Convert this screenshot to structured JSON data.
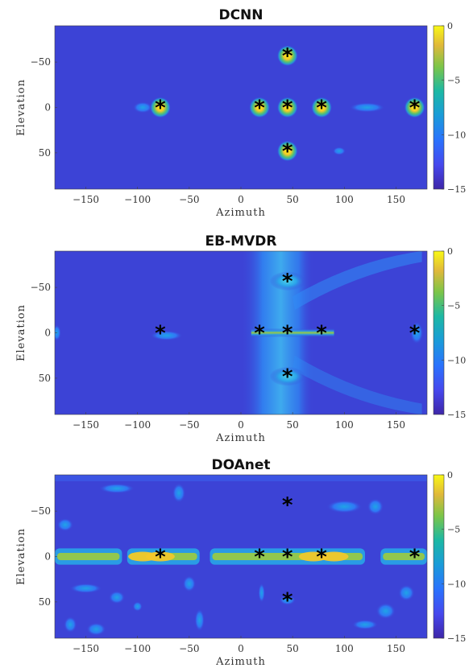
{
  "chart_data": [
    {
      "type": "heatmap",
      "title": "DCNN",
      "xlabel": "Azimuth",
      "ylabel": "Elevation",
      "xlim": [
        -180,
        180
      ],
      "ylim": [
        -90,
        90
      ],
      "y_reversed": true,
      "xticks": [
        -150,
        -100,
        -50,
        0,
        50,
        100,
        150
      ],
      "yticks": [
        -50,
        0,
        50
      ],
      "colorbar": {
        "range": [
          -15,
          0
        ],
        "ticks": [
          0,
          -5,
          -10,
          -15
        ],
        "colormap": "parula"
      },
      "sources": [
        {
          "azimuth": -78,
          "elevation": 0
        },
        {
          "azimuth": 18,
          "elevation": 0
        },
        {
          "azimuth": 45,
          "elevation": 0
        },
        {
          "azimuth": 78,
          "elevation": 0
        },
        {
          "azimuth": 168,
          "elevation": 0
        },
        {
          "azimuth": 45,
          "elevation": -57
        },
        {
          "azimuth": 45,
          "elevation": 48
        }
      ],
      "star_color": "#000000"
    },
    {
      "type": "heatmap",
      "title": "EB-MVDR",
      "xlabel": "Azimuth",
      "ylabel": "Elevation",
      "xlim": [
        -180,
        180
      ],
      "ylim": [
        -90,
        90
      ],
      "y_reversed": true,
      "xticks": [
        -150,
        -100,
        -50,
        0,
        50,
        100,
        150
      ],
      "yticks": [
        -50,
        0,
        50
      ],
      "colorbar": {
        "range": [
          -15,
          0
        ],
        "ticks": [
          0,
          -5,
          -10,
          -15
        ],
        "colormap": "parula"
      },
      "sources": [
        {
          "azimuth": -78,
          "elevation": 0
        },
        {
          "azimuth": 18,
          "elevation": 0
        },
        {
          "azimuth": 45,
          "elevation": 0
        },
        {
          "azimuth": 78,
          "elevation": 0
        },
        {
          "azimuth": 168,
          "elevation": 0
        },
        {
          "azimuth": 45,
          "elevation": -57
        },
        {
          "azimuth": 45,
          "elevation": 48
        }
      ],
      "star_color": "#000000"
    },
    {
      "type": "heatmap",
      "title": "DOAnet",
      "xlabel": "Azimuth",
      "ylabel": "Elevation",
      "xlim": [
        -180,
        180
      ],
      "ylim": [
        -90,
        90
      ],
      "y_reversed": true,
      "xticks": [
        -150,
        -100,
        -50,
        0,
        50,
        100,
        150
      ],
      "yticks": [
        -50,
        0,
        50
      ],
      "colorbar": {
        "range": [
          -15,
          0
        ],
        "ticks": [
          0,
          -5,
          -10,
          -15
        ],
        "colormap": "parula"
      },
      "sources": [
        {
          "azimuth": -78,
          "elevation": 0
        },
        {
          "azimuth": 18,
          "elevation": 0
        },
        {
          "azimuth": 45,
          "elevation": 0
        },
        {
          "azimuth": 78,
          "elevation": 0
        },
        {
          "azimuth": 168,
          "elevation": 0
        },
        {
          "azimuth": 45,
          "elevation": -57
        },
        {
          "azimuth": 45,
          "elevation": 48
        }
      ],
      "star_color": "#000000"
    }
  ]
}
